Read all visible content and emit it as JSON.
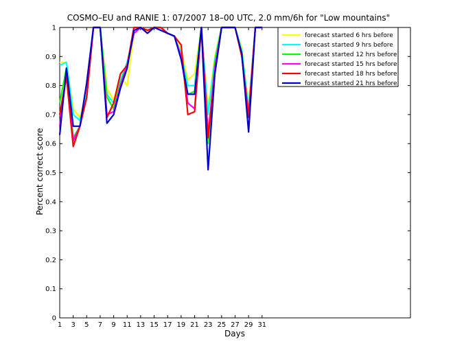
{
  "chart_data": {
    "type": "line",
    "title": "COSMO–EU and RANIE 1: 07/2007 18–00 UTC, 2.0 mm/6h for \"Low mountains\"",
    "xlabel": "Days",
    "ylabel": "Percent correct score",
    "xlim": [
      1,
      53
    ],
    "ylim": [
      0,
      1
    ],
    "xticks": [
      1,
      3,
      5,
      7,
      9,
      11,
      13,
      15,
      17,
      19,
      21,
      23,
      25,
      27,
      29,
      31
    ],
    "yticks": [
      0,
      0.1,
      0.2,
      0.3,
      0.4,
      0.5,
      0.6,
      0.7,
      0.8,
      0.9,
      1
    ],
    "legend_position": "top-right",
    "x": [
      1,
      2,
      3,
      4,
      5,
      6,
      7,
      8,
      9,
      10,
      11,
      12,
      13,
      14,
      15,
      16,
      17,
      18,
      19,
      20,
      21,
      22,
      23,
      24,
      25,
      26,
      27,
      28,
      29,
      30,
      31
    ],
    "series": [
      {
        "name": "forecast started 6 hrs before",
        "color": "#ffff00",
        "values": [
          0.88,
          0.88,
          0.72,
          0.69,
          0.78,
          1.0,
          1.0,
          0.79,
          0.75,
          0.83,
          0.8,
          0.98,
          1.0,
          0.99,
          1.0,
          1.0,
          0.98,
          0.97,
          0.92,
          0.82,
          0.84,
          1.0,
          0.72,
          0.9,
          1.0,
          1.0,
          1.0,
          0.93,
          0.73,
          1.0,
          1.0
        ]
      },
      {
        "name": "forecast started 9 hrs before",
        "color": "#00ffff",
        "values": [
          0.87,
          0.88,
          0.7,
          0.68,
          0.77,
          1.0,
          1.0,
          0.77,
          0.74,
          0.82,
          0.88,
          0.98,
          1.0,
          0.99,
          1.0,
          1.0,
          0.98,
          0.97,
          0.91,
          0.8,
          0.8,
          1.0,
          0.7,
          0.89,
          1.0,
          1.0,
          1.0,
          0.92,
          0.72,
          1.0,
          1.0
        ]
      },
      {
        "name": "forecast started 12 hrs before",
        "color": "#00ff00",
        "values": [
          0.74,
          0.86,
          0.62,
          0.66,
          0.76,
          1.0,
          1.0,
          0.76,
          0.72,
          0.81,
          0.87,
          0.98,
          1.0,
          0.99,
          1.0,
          1.0,
          0.98,
          0.97,
          0.9,
          0.77,
          0.78,
          1.0,
          0.6,
          0.88,
          1.0,
          1.0,
          1.0,
          0.91,
          0.7,
          1.0,
          1.0
        ]
      },
      {
        "name": "forecast started 15 hrs before",
        "color": "#ff00ff",
        "values": [
          0.66,
          0.84,
          0.61,
          0.66,
          0.76,
          1.0,
          1.0,
          0.7,
          0.71,
          0.8,
          0.87,
          0.98,
          1.0,
          0.99,
          1.0,
          1.0,
          0.98,
          0.97,
          0.9,
          0.74,
          0.72,
          1.0,
          0.63,
          0.86,
          1.0,
          1.0,
          1.0,
          0.9,
          0.7,
          1.0,
          1.0
        ]
      },
      {
        "name": "forecast started 18 hrs before",
        "color": "#ff0000",
        "values": [
          0.7,
          0.83,
          0.59,
          0.66,
          0.76,
          1.0,
          1.0,
          0.69,
          0.74,
          0.84,
          0.87,
          1.0,
          1.0,
          0.99,
          1.0,
          1.0,
          0.98,
          0.97,
          0.94,
          0.7,
          0.71,
          1.0,
          0.62,
          0.84,
          1.0,
          1.0,
          1.0,
          0.9,
          0.69,
          1.0,
          1.0
        ]
      },
      {
        "name": "forecast started 21 hrs before",
        "color": "#0000cc",
        "values": [
          0.63,
          0.86,
          0.66,
          0.66,
          0.81,
          1.0,
          1.0,
          0.67,
          0.7,
          0.79,
          0.86,
          0.99,
          1.0,
          0.98,
          1.0,
          0.99,
          0.98,
          0.97,
          0.89,
          0.77,
          0.77,
          1.0,
          0.51,
          0.84,
          1.0,
          1.0,
          1.0,
          0.91,
          0.64,
          1.0,
          1.0
        ]
      }
    ]
  }
}
